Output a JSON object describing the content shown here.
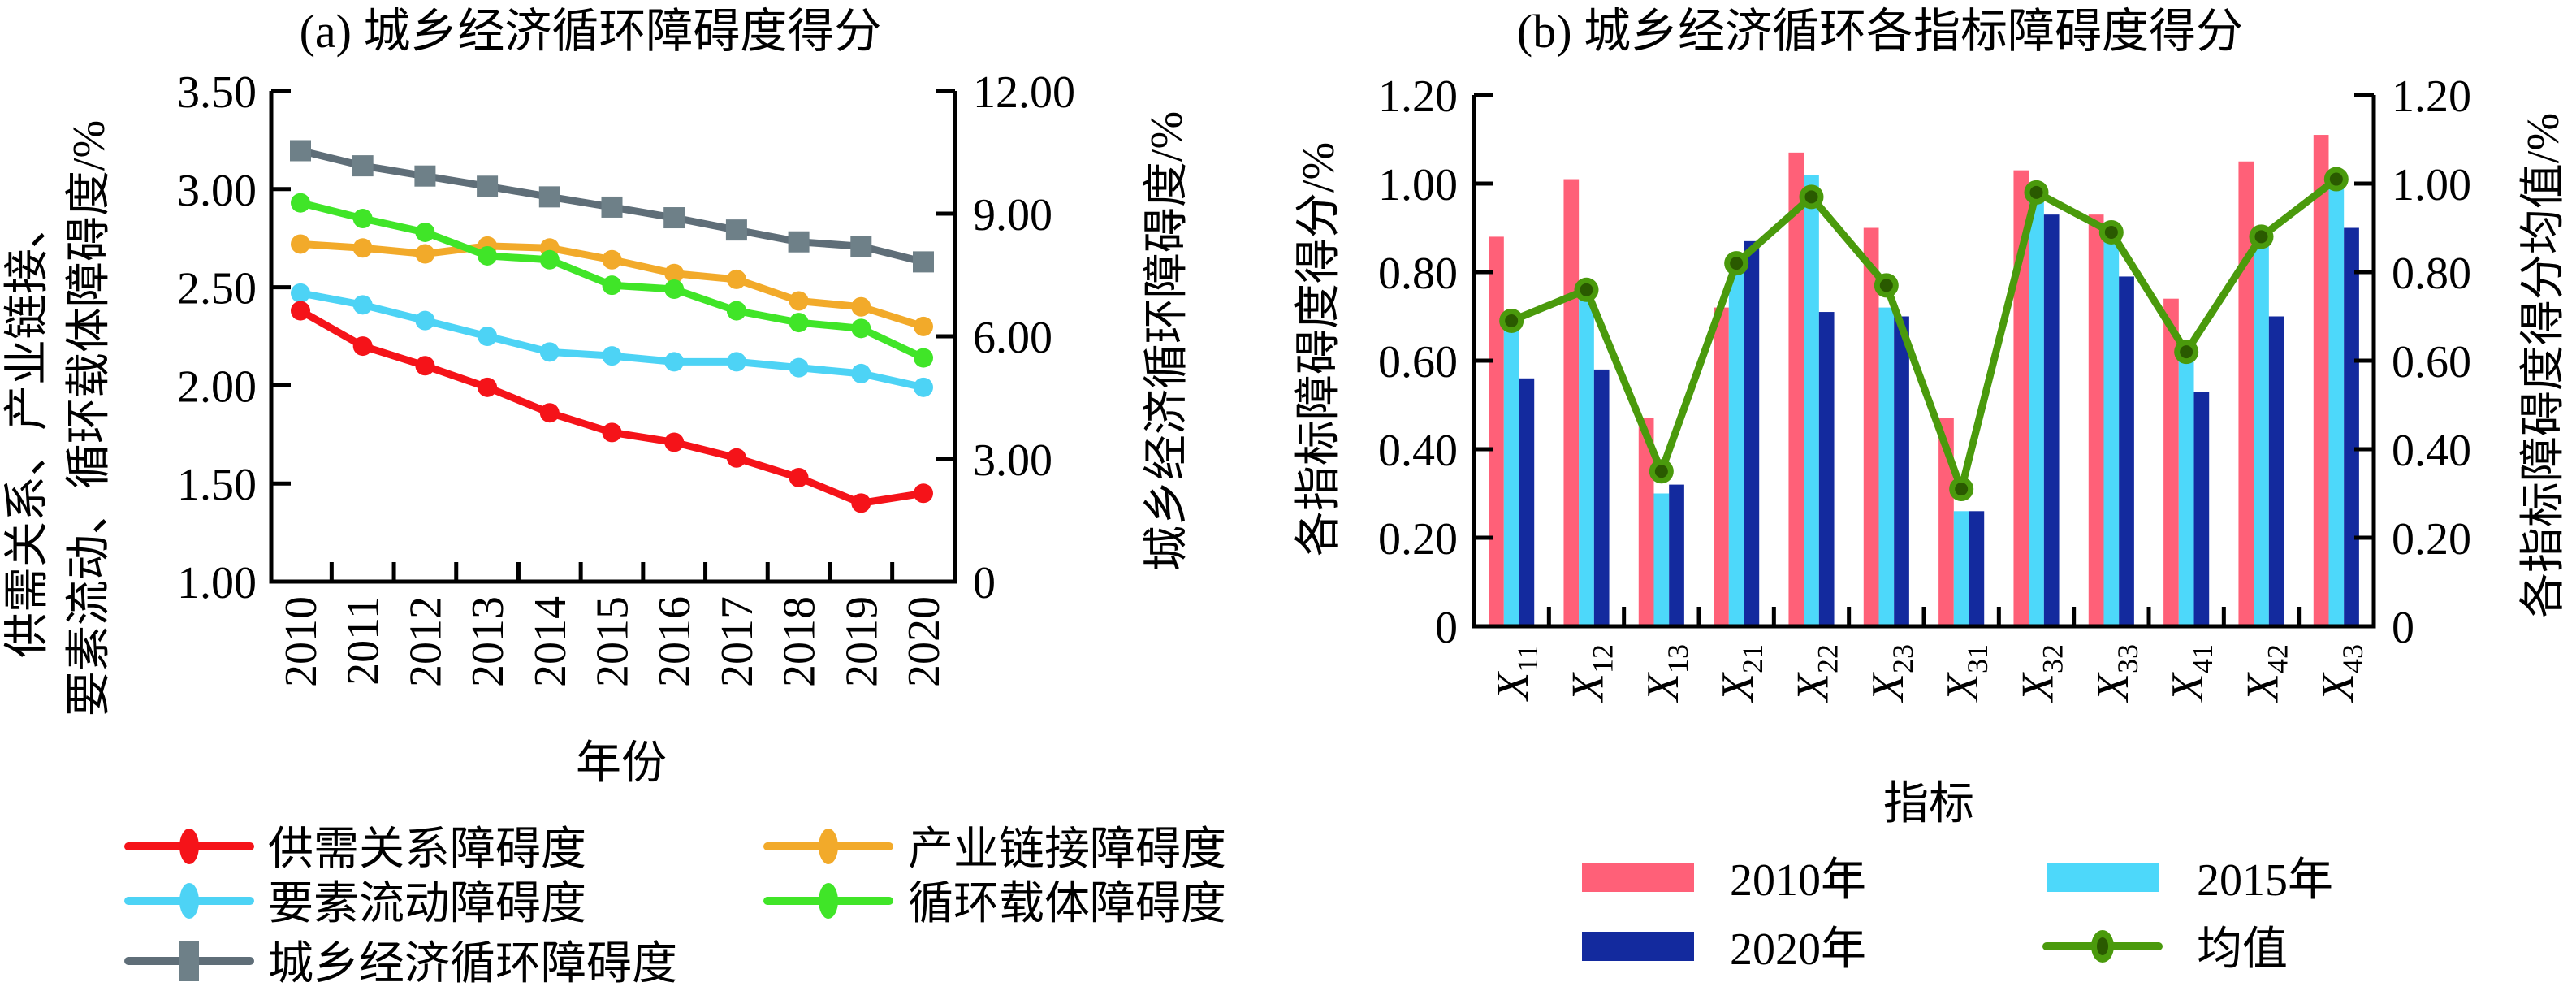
{
  "chart_data": [
    {
      "type": "line",
      "title": "(a) 城乡经济循环障碍度得分",
      "xlabel": "年份",
      "ylabel_lines": [
        "供需关系、产业链接、",
        "要素流动、循环载体障碍度/%"
      ],
      "y2label": "城乡经济循环障碍度/%",
      "x": [
        "2010",
        "2011",
        "2012",
        "2013",
        "2014",
        "2015",
        "2016",
        "2017",
        "2018",
        "2019",
        "2020"
      ],
      "ylim": [
        1.0,
        3.5
      ],
      "yticks": [
        "1.00",
        "1.50",
        "2.00",
        "2.50",
        "3.00",
        "3.50"
      ],
      "y2lim": [
        0,
        12
      ],
      "y2ticks": [
        "0",
        "3.00",
        "6.00",
        "9.00",
        "12.00"
      ],
      "grid": false,
      "legend_placement": "bottom",
      "series": [
        {
          "name": "供需关系障碍度",
          "axis": "left",
          "marker": "circle",
          "color": "#F51319",
          "values": [
            2.38,
            2.2,
            2.1,
            1.99,
            1.86,
            1.76,
            1.71,
            1.63,
            1.53,
            1.4,
            1.45
          ]
        },
        {
          "name": "产业链接障碍度",
          "axis": "left",
          "marker": "circle",
          "color": "#F2AA2A",
          "values": [
            2.72,
            2.7,
            2.67,
            2.71,
            2.7,
            2.64,
            2.57,
            2.54,
            2.43,
            2.4,
            2.3
          ]
        },
        {
          "name": "要素流动障碍度",
          "axis": "left",
          "marker": "circle",
          "color": "#4DD3F5",
          "values": [
            2.47,
            2.41,
            2.33,
            2.25,
            2.17,
            2.15,
            2.12,
            2.12,
            2.09,
            2.06,
            1.99
          ]
        },
        {
          "name": "循环载体障碍度",
          "axis": "left",
          "marker": "circle",
          "color": "#40E528",
          "values": [
            2.93,
            2.85,
            2.78,
            2.66,
            2.64,
            2.51,
            2.49,
            2.38,
            2.32,
            2.29,
            2.14
          ]
        },
        {
          "name": "城乡经济循环障碍度",
          "axis": "right",
          "marker": "square",
          "color": "#5F6E78",
          "marker_color": "#6E8088",
          "values": [
            10.54,
            10.17,
            9.92,
            9.67,
            9.41,
            9.16,
            8.9,
            8.6,
            8.31,
            8.2,
            7.82
          ]
        }
      ]
    },
    {
      "type": "bar",
      "title": "(b) 城乡经济循环各指标障碍度得分",
      "xlabel": "指标",
      "ylabel": "各指标障碍度得分/%",
      "y2label": "各指标障碍度得分均值/%",
      "categories": [
        "X11",
        "X12",
        "X13",
        "X21",
        "X22",
        "X23",
        "X31",
        "X32",
        "X33",
        "X41",
        "X42",
        "X43"
      ],
      "category_labels": [
        {
          "main": "X",
          "sub": "11"
        },
        {
          "main": "X",
          "sub": "12"
        },
        {
          "main": "X",
          "sub": "13"
        },
        {
          "main": "X",
          "sub": "21"
        },
        {
          "main": "X",
          "sub": "22"
        },
        {
          "main": "X",
          "sub": "23"
        },
        {
          "main": "X",
          "sub": "31"
        },
        {
          "main": "X",
          "sub": "32"
        },
        {
          "main": "X",
          "sub": "33"
        },
        {
          "main": "X",
          "sub": "41"
        },
        {
          "main": "X",
          "sub": "42"
        },
        {
          "main": "X",
          "sub": "43"
        }
      ],
      "ylim": [
        0,
        1.2
      ],
      "yticks": [
        "0",
        "0.20",
        "0.40",
        "0.60",
        "0.80",
        "1.00",
        "1.20"
      ],
      "y2lim": [
        0,
        1.2
      ],
      "y2ticks": [
        "0",
        "0.20",
        "0.40",
        "0.60",
        "0.80",
        "1.00",
        "1.20"
      ],
      "grid": false,
      "legend_placement": "bottom",
      "series": [
        {
          "name": "2010年",
          "kind": "bar",
          "color": "#FF6078",
          "values": [
            0.88,
            1.01,
            0.47,
            0.72,
            1.07,
            0.9,
            0.47,
            1.03,
            0.93,
            0.74,
            1.05,
            1.11
          ]
        },
        {
          "name": "2015年",
          "kind": "bar",
          "color": "#4DD8FA",
          "values": [
            0.68,
            0.75,
            0.3,
            0.8,
            1.02,
            0.72,
            0.26,
            0.97,
            0.88,
            0.63,
            0.87,
            1.0
          ]
        },
        {
          "name": "2020年",
          "kind": "bar",
          "color": "#132A9E",
          "values": [
            0.56,
            0.58,
            0.32,
            0.87,
            0.71,
            0.7,
            0.26,
            0.93,
            0.79,
            0.53,
            0.7,
            0.9
          ]
        },
        {
          "name": "均值",
          "kind": "line",
          "axis": "right",
          "color": "#4A9A0C",
          "marker_color": "#2A5A00",
          "values": [
            0.69,
            0.76,
            0.35,
            0.82,
            0.97,
            0.77,
            0.31,
            0.98,
            0.89,
            0.62,
            0.88,
            1.01
          ]
        }
      ]
    }
  ]
}
